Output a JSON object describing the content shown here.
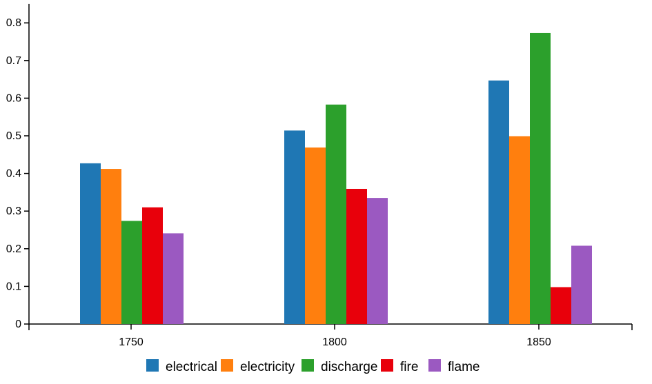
{
  "chart_data": {
    "type": "bar",
    "categories": [
      "1750",
      "1800",
      "1850"
    ],
    "series": [
      {
        "name": "electrical",
        "color": "#1f77b4",
        "values": [
          0.427,
          0.514,
          0.647
        ]
      },
      {
        "name": "electricity",
        "color": "#ff7f0e",
        "values": [
          0.412,
          0.469,
          0.499
        ]
      },
      {
        "name": "discharge",
        "color": "#2ca02c",
        "values": [
          0.274,
          0.583,
          0.773
        ]
      },
      {
        "name": "fire",
        "color": "#e8000b",
        "values": [
          0.31,
          0.359,
          0.098
        ]
      },
      {
        "name": "flame",
        "color": "#9b59c1",
        "values": [
          0.241,
          0.335,
          0.208
        ]
      }
    ],
    "yticks": [
      "0",
      "0.1",
      "0.2",
      "0.3",
      "0.4",
      "0.5",
      "0.6",
      "0.7",
      "0.8"
    ],
    "ylim": [
      0,
      0.85
    ],
    "legend_position": "bottom",
    "grid": false
  }
}
